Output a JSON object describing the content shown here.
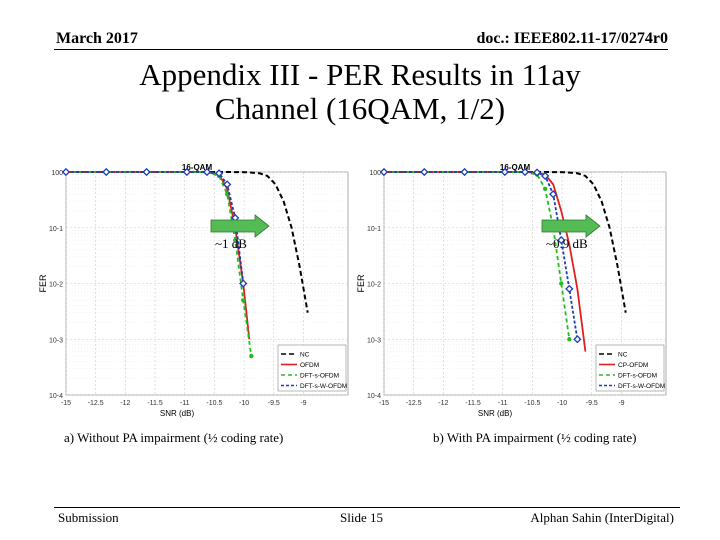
{
  "header": {
    "date": "March 2017",
    "doc": "doc.: IEEE802.11-17/0274r0"
  },
  "title": {
    "line1": "Appendix III - PER Results in 11ay",
    "line2": "Channel (16QAM, 1/2)"
  },
  "footer": {
    "left": "Submission",
    "center": "Slide 15",
    "right": "Alphan Sahin (InterDigital)"
  },
  "captions": [
    "a) Without PA impairment (½ coding rate)",
    "b) With PA impairment (½ coding rate)"
  ],
  "colors": {
    "nc": "#000000",
    "ofdm": "#e02020",
    "dfts": "#22bb22",
    "dftsw": "#1a3fb0",
    "arrow": "#55bb55"
  },
  "chart_data": [
    {
      "type": "line",
      "title": "16-QAM",
      "xlabel": "SNR (dB)",
      "ylabel": "FER",
      "xlim": [
        -15,
        -8
      ],
      "ylim_log10": [
        -4,
        0
      ],
      "xticks": [
        "-15",
        "-12.5",
        "-12",
        "-11.5",
        "-11",
        "-10.5",
        "-10",
        "-9.5",
        "-9"
      ],
      "yticks": [
        "10^0",
        "10^-1",
        "10^-2",
        "10^-3",
        "10^-4"
      ],
      "legend": {
        "position": "bottom-right",
        "entries": [
          "NC",
          "OFDM",
          "DFT-s-OFDM",
          "DFT-s-W-OFDM"
        ]
      },
      "annotation": "~1 dB",
      "series": [
        {
          "name": "NC",
          "x": [
            -15,
            -14,
            -13,
            -12,
            -11.5,
            -11,
            -10.5,
            -10.2,
            -10,
            -9.8,
            -9.6,
            -9.4,
            -9.2,
            -9.0
          ],
          "y": [
            1,
            1,
            1,
            1,
            1,
            1,
            0.99,
            0.95,
            0.85,
            0.6,
            0.3,
            0.1,
            0.02,
            0.003
          ]
        },
        {
          "name": "OFDM",
          "x": [
            -15,
            -14,
            -13,
            -12,
            -11.5,
            -11.2,
            -11,
            -10.8,
            -10.6,
            -10.45
          ],
          "y": [
            1,
            1,
            1,
            1,
            0.99,
            0.9,
            0.5,
            0.1,
            0.01,
            0.001
          ]
        },
        {
          "name": "DFT-s-OFDM",
          "x": [
            -15,
            -14,
            -13,
            -12,
            -11.5,
            -11.2,
            -11,
            -10.8,
            -10.6,
            -10.4
          ],
          "y": [
            1,
            1,
            1,
            1,
            0.99,
            0.85,
            0.4,
            0.06,
            0.005,
            0.0005
          ]
        },
        {
          "name": "DFT-s-W-OFDM",
          "x": [
            -15,
            -14,
            -13,
            -12,
            -11.5,
            -11.2,
            -11,
            -10.8,
            -10.6
          ],
          "y": [
            1,
            1,
            1,
            1,
            1,
            0.95,
            0.6,
            0.15,
            0.01
          ]
        }
      ]
    },
    {
      "type": "line",
      "title": "16-QAM",
      "xlabel": "SNR (dB)",
      "ylabel": "FER",
      "xlim": [
        -15,
        -8
      ],
      "ylim_log10": [
        -4,
        0
      ],
      "xticks": [
        "-15",
        "-12.5",
        "-12",
        "-11.5",
        "-11",
        "-10.5",
        "-10",
        "-9.5",
        "-9"
      ],
      "yticks": [
        "10^0",
        "10^-1",
        "10^-2",
        "10^-3",
        "10^-4"
      ],
      "legend": {
        "position": "bottom-right",
        "entries": [
          "NC",
          "CP-OFDM",
          "DFT-s-OFDM",
          "DFT-s-W-OFDM"
        ]
      },
      "annotation": "~0.9 dB",
      "series": [
        {
          "name": "NC",
          "x": [
            -15,
            -14,
            -13,
            -12,
            -11.5,
            -11,
            -10.5,
            -10.2,
            -10,
            -9.8,
            -9.6,
            -9.4,
            -9.2,
            -9.0
          ],
          "y": [
            1,
            1,
            1,
            1,
            1,
            1,
            0.99,
            0.95,
            0.85,
            0.6,
            0.3,
            0.1,
            0.02,
            0.003
          ]
        },
        {
          "name": "CP-OFDM",
          "x": [
            -15,
            -14,
            -13,
            -12,
            -11.5,
            -11.2,
            -11,
            -10.8,
            -10.6,
            -10.4,
            -10.2,
            -10.0
          ],
          "y": [
            1,
            1,
            1,
            1,
            1,
            0.97,
            0.9,
            0.6,
            0.2,
            0.05,
            0.008,
            0.0006
          ]
        },
        {
          "name": "DFT-s-OFDM",
          "x": [
            -15,
            -14,
            -13,
            -12,
            -11.5,
            -11.2,
            -11,
            -10.8,
            -10.6,
            -10.4
          ],
          "y": [
            1,
            1,
            1,
            1,
            0.99,
            0.9,
            0.5,
            0.1,
            0.01,
            0.001
          ]
        },
        {
          "name": "DFT-s-W-OFDM",
          "x": [
            -15,
            -14,
            -13,
            -12,
            -11.5,
            -11.2,
            -11,
            -10.8,
            -10.6,
            -10.4,
            -10.2
          ],
          "y": [
            1,
            1,
            1,
            1,
            1,
            0.98,
            0.85,
            0.4,
            0.06,
            0.008,
            0.001
          ]
        }
      ]
    }
  ]
}
